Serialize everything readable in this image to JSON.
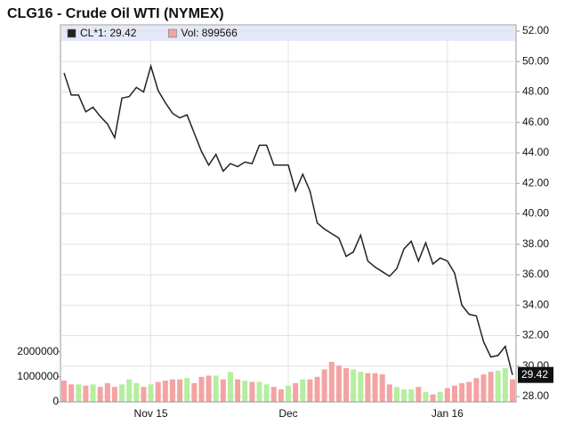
{
  "chart_data": {
    "type": "line",
    "title": "CLG16 - Crude Oil WTI (NYMEX)",
    "categories": [
      null,
      null,
      null,
      null,
      null,
      null,
      null,
      null,
      null,
      null,
      null,
      null,
      "Nov 15",
      null,
      null,
      null,
      null,
      null,
      null,
      null,
      null,
      null,
      null,
      null,
      null,
      null,
      null,
      null,
      null,
      null,
      null,
      "Dec",
      null,
      null,
      null,
      null,
      null,
      null,
      null,
      null,
      null,
      null,
      null,
      null,
      null,
      null,
      null,
      null,
      null,
      null,
      null,
      null,
      null,
      "Jan 16",
      null,
      null,
      null,
      null,
      null,
      null,
      null,
      null,
      null
    ],
    "series": [
      {
        "name": "CL*1: 29.42",
        "type": "line",
        "axis": "y2",
        "color": "#222222",
        "values": [
          49.25,
          47.8,
          47.8,
          46.7,
          47.0,
          46.4,
          45.9,
          45.0,
          47.6,
          47.7,
          48.3,
          48.0,
          49.7,
          48.1,
          47.3,
          46.6,
          46.3,
          46.5,
          45.3,
          44.1,
          43.2,
          43.9,
          42.8,
          43.3,
          43.1,
          43.4,
          43.3,
          44.5,
          44.5,
          43.2,
          43.2,
          43.2,
          41.5,
          42.6,
          41.5,
          39.4,
          39.0,
          38.7,
          38.4,
          37.2,
          37.5,
          38.6,
          36.9,
          36.5,
          36.2,
          35.9,
          36.4,
          37.7,
          38.2,
          36.9,
          38.1,
          36.7,
          37.1,
          36.9,
          36.1,
          34.0,
          33.4,
          33.3,
          31.6,
          30.6,
          30.7,
          31.3,
          29.42
        ]
      },
      {
        "name": "Vol: 899566",
        "type": "bar",
        "color": "#f4a3a3",
        "values": [
          850000,
          700000,
          700000,
          650000,
          700000,
          600000,
          750000,
          600000,
          700000,
          900000,
          750000,
          600000,
          700000,
          800000,
          850000,
          900000,
          900000,
          950000,
          750000,
          1000000,
          1050000,
          1050000,
          900000,
          1200000,
          900000,
          850000,
          800000,
          800000,
          700000,
          600000,
          500000,
          650000,
          750000,
          900000,
          900000,
          1000000,
          1300000,
          1600000,
          1450000,
          1350000,
          1300000,
          1200000,
          1150000,
          1150000,
          1100000,
          700000,
          600000,
          500000,
          500000,
          600000,
          400000,
          300000,
          400000,
          550000,
          650000,
          750000,
          800000,
          950000,
          1100000,
          1200000,
          1250000,
          1350000,
          899566
        ],
        "colors": [
          "#f4a3a3",
          "#f4a3a3",
          "#b5ee9f",
          "#f4a3a3",
          "#b5ee9f",
          "#f4a3a3",
          "#f4a3a3",
          "#f4a3a3",
          "#b5ee9f",
          "#b5ee9f",
          "#b5ee9f",
          "#f4a3a3",
          "#b5ee9f",
          "#f4a3a3",
          "#f4a3a3",
          "#f4a3a3",
          "#f4a3a3",
          "#b5ee9f",
          "#f4a3a3",
          "#f4a3a3",
          "#f4a3a3",
          "#b5ee9f",
          "#f4a3a3",
          "#b5ee9f",
          "#f4a3a3",
          "#b5ee9f",
          "#f4a3a3",
          "#b5ee9f",
          "#b5ee9f",
          "#f4a3a3",
          "#f4a3a3",
          "#b5ee9f",
          "#f4a3a3",
          "#b5ee9f",
          "#f4a3a3",
          "#f4a3a3",
          "#f4a3a3",
          "#f4a3a3",
          "#f4a3a3",
          "#f4a3a3",
          "#b5ee9f",
          "#b5ee9f",
          "#f4a3a3",
          "#f4a3a3",
          "#f4a3a3",
          "#f4a3a3",
          "#b5ee9f",
          "#b5ee9f",
          "#b5ee9f",
          "#f4a3a3",
          "#b5ee9f",
          "#f4a3a3",
          "#b5ee9f",
          "#f4a3a3",
          "#f4a3a3",
          "#f4a3a3",
          "#f4a3a3",
          "#f4a3a3",
          "#f4a3a3",
          "#f4a3a3",
          "#b5ee9f",
          "#b5ee9f",
          "#f4a3a3"
        ]
      }
    ],
    "ylim": [
      0,
      15000000
    ],
    "yticks": [
      0,
      1000000,
      2000000
    ],
    "y2lim": [
      27.65,
      52.29
    ],
    "y2ticks": [
      {
        "value": 28,
        "label": "28.00"
      },
      {
        "value": 30,
        "label": "30.00"
      },
      {
        "value": 32,
        "label": "32.00"
      },
      {
        "value": 34,
        "label": "34.00"
      },
      {
        "value": 36,
        "label": "36.00"
      },
      {
        "value": 38,
        "label": "38.00"
      },
      {
        "value": 40,
        "label": "40.00"
      },
      {
        "value": 42,
        "label": "42.00"
      },
      {
        "value": 44,
        "label": "44.00"
      },
      {
        "value": 46,
        "label": "46.00"
      },
      {
        "value": 48,
        "label": "48.00"
      },
      {
        "value": 50,
        "label": "50.00"
      },
      {
        "value": 52,
        "label": "52.00"
      }
    ],
    "grid": true
  }
}
